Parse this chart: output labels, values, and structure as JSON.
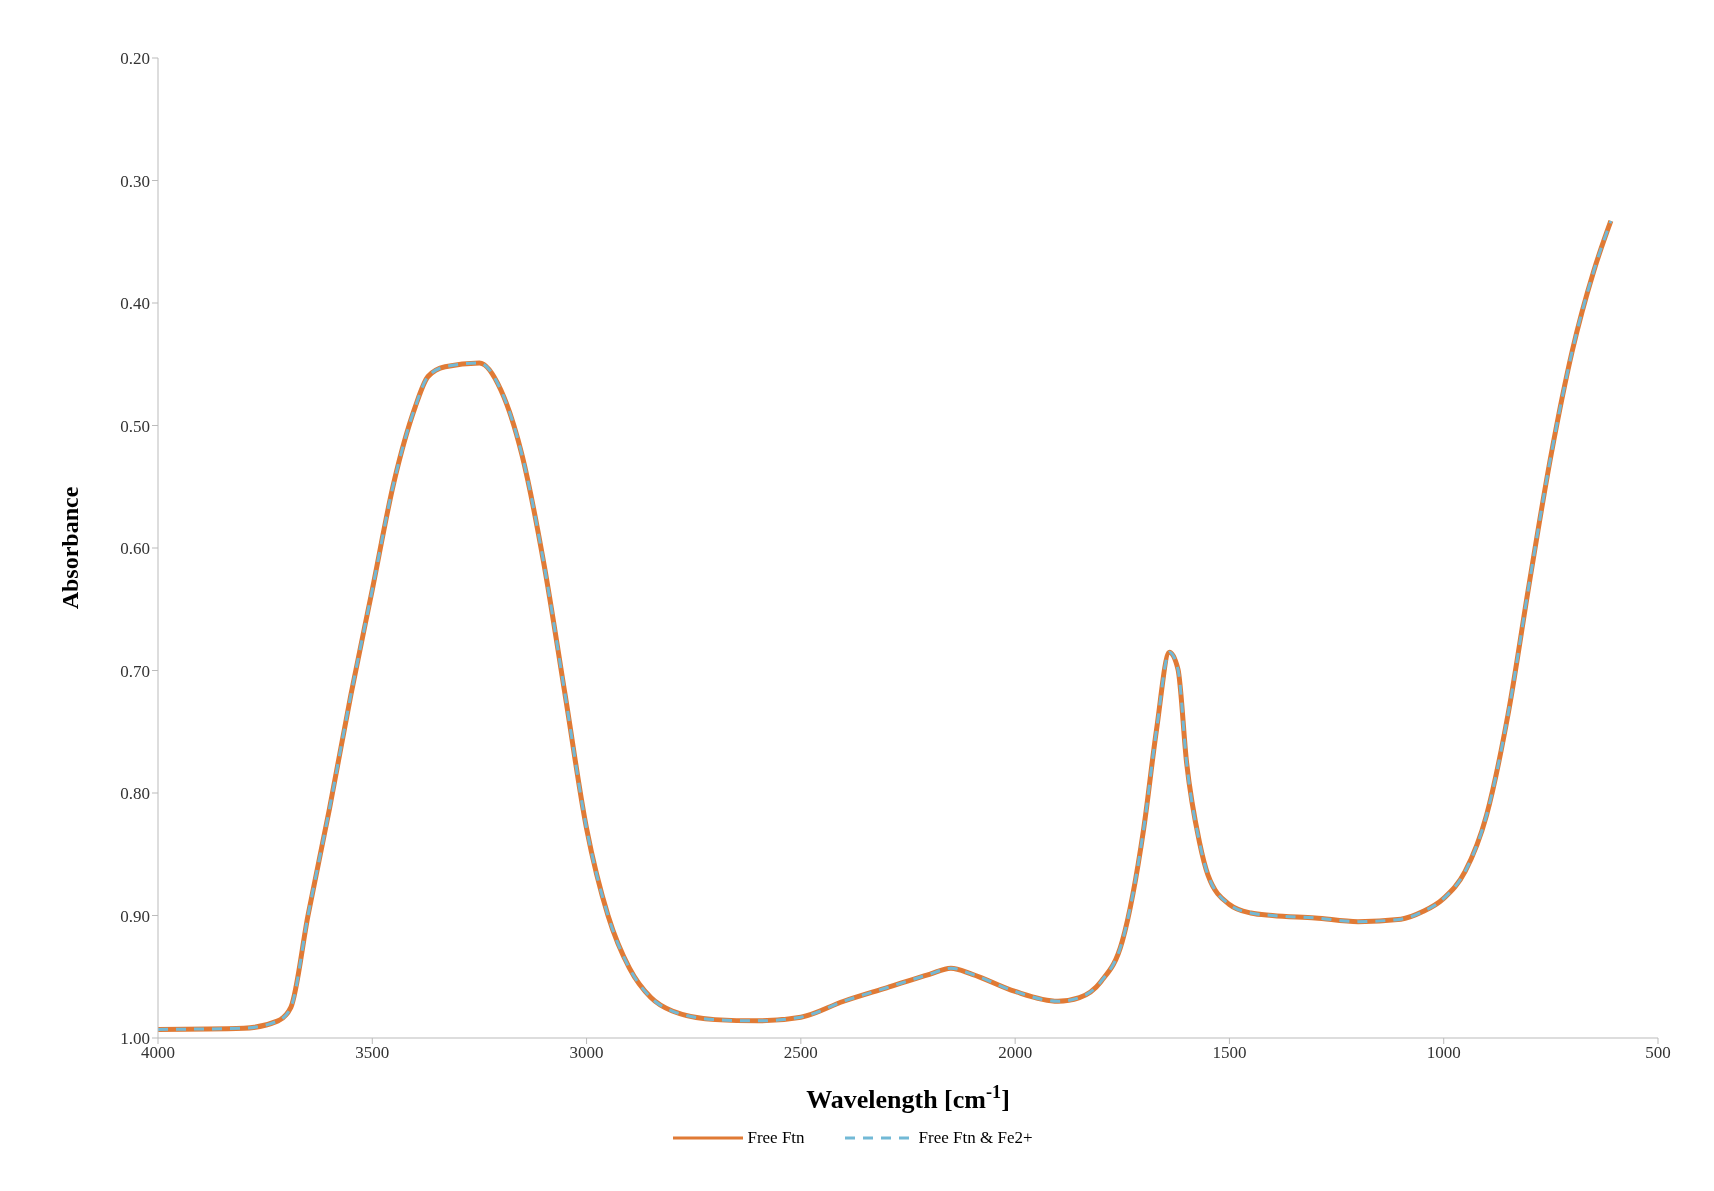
{
  "chart_data": {
    "type": "line",
    "xlabel": "Wavelength [cm$^{-1}$]",
    "ylabel": "Absorbance",
    "x": [
      4000,
      3800,
      3720,
      3690,
      3650,
      3600,
      3550,
      3500,
      3450,
      3400,
      3370,
      3330,
      3250,
      3200,
      3150,
      3100,
      3050,
      3000,
      2950,
      2900,
      2850,
      2800,
      2700,
      2600,
      2500,
      2400,
      2300,
      2200,
      2150,
      2100,
      2000,
      1900,
      1850,
      1800,
      1750,
      1700,
      1670,
      1640,
      1620,
      1600,
      1570,
      1550,
      1500,
      1450,
      1400,
      1300,
      1200,
      1100,
      1050,
      1000,
      950,
      900,
      850,
      800,
      750,
      700,
      650,
      610
    ],
    "series": [
      {
        "name": "Free Ftn",
        "color": "#e07a35",
        "line_style": "solid",
        "values": [
          0.993,
          0.992,
          0.986,
          0.975,
          0.9,
          0.813,
          0.72,
          0.634,
          0.547,
          0.485,
          0.46,
          0.452,
          0.449,
          0.471,
          0.525,
          0.612,
          0.72,
          0.829,
          0.9,
          0.943,
          0.967,
          0.978,
          0.985,
          0.986,
          0.983,
          0.97,
          0.959,
          0.948,
          0.943,
          0.948,
          0.962,
          0.97,
          0.967,
          0.954,
          0.921,
          0.829,
          0.748,
          0.685,
          0.699,
          0.775,
          0.84,
          0.867,
          0.891,
          0.898,
          0.9,
          0.902,
          0.905,
          0.903,
          0.897,
          0.886,
          0.864,
          0.818,
          0.736,
          0.628,
          0.525,
          0.439,
          0.374,
          0.333
        ]
      },
      {
        "name": "Free Ftn & Fe2+",
        "color": "#72b9d6",
        "line_style": "dashed",
        "values": [
          0.993,
          0.992,
          0.986,
          0.975,
          0.9,
          0.813,
          0.72,
          0.634,
          0.547,
          0.485,
          0.46,
          0.452,
          0.449,
          0.471,
          0.525,
          0.612,
          0.72,
          0.829,
          0.9,
          0.943,
          0.967,
          0.978,
          0.985,
          0.986,
          0.983,
          0.97,
          0.959,
          0.948,
          0.943,
          0.948,
          0.962,
          0.97,
          0.967,
          0.954,
          0.921,
          0.829,
          0.748,
          0.685,
          0.699,
          0.775,
          0.84,
          0.867,
          0.891,
          0.898,
          0.9,
          0.902,
          0.905,
          0.903,
          0.897,
          0.886,
          0.864,
          0.818,
          0.736,
          0.628,
          0.525,
          0.439,
          0.374,
          0.333
        ]
      }
    ],
    "xlim": [
      4000,
      500
    ],
    "xticks": [
      4000,
      3500,
      3000,
      2500,
      2000,
      1500,
      1000,
      500
    ],
    "ylim": [
      1.0,
      0.2
    ],
    "yticks": [
      {
        "value": 0.2,
        "label": "0.20"
      },
      {
        "value": 0.3,
        "label": "0.30"
      },
      {
        "value": 0.4,
        "label": "0.40"
      },
      {
        "value": 0.5,
        "label": "0.50"
      },
      {
        "value": 0.6,
        "label": "0.60"
      },
      {
        "value": 0.7,
        "label": "0.70"
      },
      {
        "value": 0.8,
        "label": "0.80"
      },
      {
        "value": 0.9,
        "label": "0.90"
      },
      {
        "value": 1.0,
        "label": "1.00"
      }
    ],
    "grid": false,
    "legend": "bottom",
    "marker": "none"
  }
}
